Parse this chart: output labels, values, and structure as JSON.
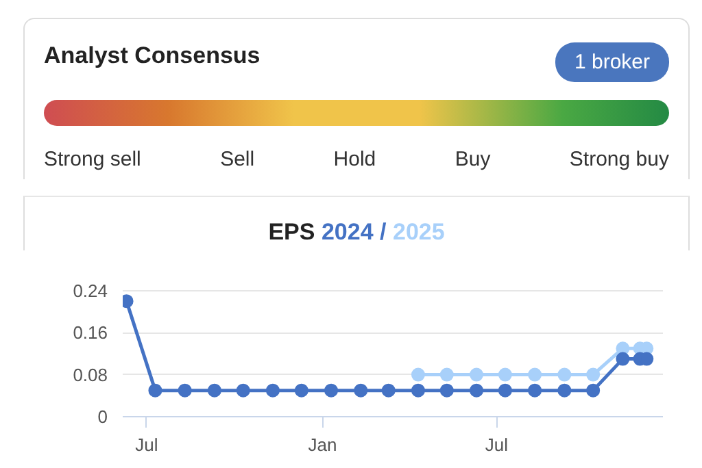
{
  "chart_data": [
    {
      "type": "other",
      "title": "Analyst Consensus",
      "annotations": [
        "1 broker",
        "Strong sell",
        "Sell",
        "Hold",
        "Buy",
        "Strong buy"
      ]
    },
    {
      "type": "line",
      "title": "EPS",
      "annotations": [
        "/"
      ],
      "x": [
        "2023-06-10",
        "2023-07-10",
        "2023-08-10",
        "2023-09-10",
        "2023-10-10",
        "2023-11-10",
        "2023-12-10",
        "2024-01-10",
        "2024-02-10",
        "2024-03-10",
        "2024-04-10",
        "2024-05-10",
        "2024-06-10",
        "2024-07-10",
        "2024-08-10",
        "2024-09-10",
        "2024-10-10",
        "2024-11-10",
        "2024-11-28",
        "2024-12-05"
      ],
      "series": [
        {
          "name": "2024",
          "color": "#4472c4",
          "values": [
            0.22,
            0.05,
            0.05,
            0.05,
            0.05,
            0.05,
            0.05,
            0.05,
            0.05,
            0.05,
            0.05,
            0.05,
            0.05,
            0.05,
            0.05,
            0.05,
            0.05,
            0.11,
            0.11,
            0.11
          ]
        },
        {
          "name": "2025",
          "color": "#a8d0fa",
          "values": [
            null,
            null,
            null,
            null,
            null,
            null,
            null,
            null,
            null,
            null,
            0.08,
            0.08,
            0.08,
            0.08,
            0.08,
            0.08,
            0.08,
            0.13,
            0.13,
            0.13
          ]
        }
      ],
      "xlim": [
        "2023-06-06",
        "2024-12-22"
      ],
      "xticks": [
        {
          "value": "2023-07-01",
          "label": "Jul"
        },
        {
          "value": "2024-01-01",
          "label": "Jan"
        },
        {
          "value": "2024-07-01",
          "label": "Jul"
        }
      ],
      "ylim": [
        0,
        0.245
      ],
      "yticks": [
        0,
        0.08,
        0.16,
        0.24
      ],
      "grid": "y",
      "legend": "top",
      "marker": "circle",
      "line_style": "solid"
    }
  ]
}
